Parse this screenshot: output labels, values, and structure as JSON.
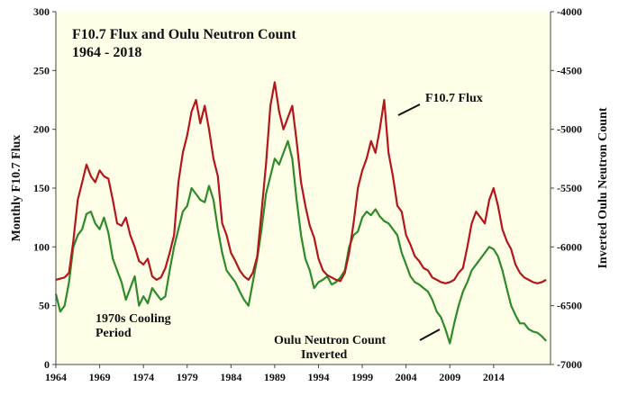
{
  "chart_data": {
    "type": "line",
    "title": "F10.7 Flux and Oulu Neutron Count",
    "subtitle": "1964 - 2018",
    "ylabel_left": "Monthly F10.7 Flux",
    "ylabel_right": "Inverted Oulu Neutron Count",
    "ylim_left": [
      0,
      300
    ],
    "ylim_right": [
      -7000,
      -4000
    ],
    "xlim": [
      1964,
      2020.5
    ],
    "x_ticks": [
      "1964",
      "1969",
      "1974",
      "1979",
      "1984",
      "1989",
      "1994",
      "1999",
      "2004",
      "2009",
      "2014"
    ],
    "y_left_ticks": [
      "0",
      "50",
      "100",
      "150",
      "200",
      "250",
      "300"
    ],
    "y_right_ticks": [
      "-4000",
      "-4500",
      "-5000",
      "-5500",
      "-6000",
      "-6500",
      "-7000"
    ],
    "grid": false,
    "colors": {
      "plot_background": "#ffffe8",
      "page_background": "#ffffff",
      "flux": "#b3161b",
      "neutron": "#2e8b28"
    },
    "series": [
      {
        "name": "F10.7 Flux",
        "axis": "left",
        "x": [
          1964.0,
          1965.0,
          1965.5,
          1966.0,
          1966.5,
          1967.0,
          1967.5,
          1968.0,
          1968.5,
          1969.0,
          1969.5,
          1970.0,
          1970.5,
          1971.0,
          1971.5,
          1972.0,
          1972.5,
          1973.0,
          1973.5,
          1974.0,
          1974.5,
          1975.0,
          1975.5,
          1976.0,
          1976.5,
          1977.0,
          1977.5,
          1978.0,
          1978.5,
          1979.0,
          1979.5,
          1980.0,
          1980.5,
          1981.0,
          1981.5,
          1982.0,
          1982.5,
          1983.0,
          1983.5,
          1984.0,
          1984.5,
          1985.0,
          1985.5,
          1986.0,
          1986.5,
          1987.0,
          1987.5,
          1988.0,
          1988.5,
          1989.0,
          1989.5,
          1990.0,
          1990.5,
          1991.0,
          1991.5,
          1992.0,
          1992.5,
          1993.0,
          1993.5,
          1994.0,
          1994.5,
          1995.0,
          1995.5,
          1996.0,
          1996.5,
          1997.0,
          1997.5,
          1998.0,
          1998.5,
          1999.0,
          1999.5,
          2000.0,
          2000.5,
          2001.0,
          2001.5,
          2002.0,
          2002.5,
          2003.0,
          2003.5,
          2004.0,
          2004.5,
          2005.0,
          2005.5,
          2006.0,
          2006.5,
          2007.0,
          2007.5,
          2008.0,
          2008.5,
          2009.0,
          2009.5,
          2010.0,
          2010.5,
          2011.0,
          2011.5,
          2012.0,
          2012.5,
          2013.0,
          2013.5,
          2014.0,
          2014.5,
          2015.0,
          2015.5,
          2016.0,
          2016.5,
          2017.0,
          2017.5,
          2018.0,
          2018.5,
          2019.0,
          2019.5,
          2020.0
        ],
        "values": [
          72,
          74,
          78,
          105,
          140,
          155,
          170,
          160,
          155,
          165,
          160,
          158,
          140,
          120,
          118,
          125,
          110,
          100,
          88,
          85,
          90,
          75,
          72,
          74,
          82,
          95,
          110,
          155,
          180,
          195,
          215,
          225,
          205,
          220,
          200,
          175,
          160,
          120,
          110,
          95,
          88,
          80,
          75,
          72,
          78,
          92,
          130,
          170,
          220,
          240,
          215,
          200,
          210,
          220,
          190,
          155,
          135,
          118,
          108,
          90,
          80,
          76,
          74,
          72,
          71,
          78,
          95,
          120,
          150,
          165,
          175,
          190,
          180,
          200,
          225,
          180,
          160,
          135,
          130,
          110,
          102,
          92,
          88,
          82,
          80,
          74,
          72,
          70,
          69,
          70,
          72,
          78,
          82,
          100,
          120,
          130,
          125,
          120,
          140,
          150,
          135,
          115,
          105,
          98,
          85,
          78,
          74,
          72,
          70,
          69,
          70,
          72
        ]
      },
      {
        "name": "Oulu Neutron Count Inverted",
        "axis": "right",
        "x": [
          1964.0,
          1964.5,
          1965.0,
          1965.5,
          1966.0,
          1966.5,
          1967.0,
          1967.5,
          1968.0,
          1968.5,
          1969.0,
          1969.5,
          1970.0,
          1970.5,
          1971.0,
          1971.5,
          1972.0,
          1972.5,
          1973.0,
          1973.5,
          1974.0,
          1974.5,
          1975.0,
          1975.5,
          1976.0,
          1976.5,
          1977.0,
          1977.5,
          1978.0,
          1978.5,
          1979.0,
          1979.5,
          1980.0,
          1980.5,
          1981.0,
          1981.5,
          1982.0,
          1982.5,
          1983.0,
          1983.5,
          1984.0,
          1984.5,
          1985.0,
          1985.5,
          1986.0,
          1986.5,
          1987.0,
          1987.5,
          1988.0,
          1988.5,
          1989.0,
          1989.5,
          1990.0,
          1990.5,
          1991.0,
          1991.5,
          1992.0,
          1992.5,
          1993.0,
          1993.5,
          1994.0,
          1994.5,
          1995.0,
          1995.5,
          1996.0,
          1996.5,
          1997.0,
          1997.5,
          1998.0,
          1998.5,
          1999.0,
          1999.5,
          2000.0,
          2000.5,
          2001.0,
          2001.5,
          2002.0,
          2002.5,
          2003.0,
          2003.5,
          2004.0,
          2004.5,
          2005.0,
          2005.5,
          2006.0,
          2006.5,
          2007.0,
          2007.5,
          2008.0,
          2008.5,
          2009.0,
          2009.5,
          2010.0,
          2010.5,
          2011.0,
          2011.5,
          2012.0,
          2012.5,
          2013.0,
          2013.5,
          2014.0,
          2014.5,
          2015.0,
          2015.5,
          2016.0,
          2016.5,
          2017.0,
          2017.5,
          2018.0,
          2018.5,
          2019.0,
          2019.5,
          2020.0
        ],
        "values": [
          -6400,
          -6550,
          -6500,
          -6300,
          -6000,
          -5900,
          -5850,
          -5720,
          -5700,
          -5800,
          -5850,
          -5750,
          -5880,
          -6100,
          -6200,
          -6300,
          -6450,
          -6350,
          -6250,
          -6500,
          -6420,
          -6480,
          -6350,
          -6400,
          -6450,
          -6420,
          -6200,
          -6000,
          -5850,
          -5700,
          -5650,
          -5500,
          -5550,
          -5600,
          -5620,
          -5480,
          -5600,
          -5850,
          -6050,
          -6200,
          -6250,
          -6300,
          -6380,
          -6450,
          -6500,
          -6300,
          -6100,
          -5850,
          -5550,
          -5400,
          -5250,
          -5300,
          -5200,
          -5100,
          -5250,
          -5600,
          -5900,
          -6100,
          -6200,
          -6350,
          -6300,
          -6280,
          -6250,
          -6320,
          -6300,
          -6260,
          -6200,
          -6000,
          -5900,
          -5870,
          -5750,
          -5700,
          -5730,
          -5680,
          -5740,
          -5780,
          -5800,
          -5850,
          -5900,
          -6050,
          -6150,
          -6250,
          -6300,
          -6320,
          -6350,
          -6380,
          -6450,
          -6550,
          -6600,
          -6700,
          -6820,
          -6650,
          -6500,
          -6380,
          -6300,
          -6200,
          -6150,
          -6100,
          -6050,
          -6000,
          -6020,
          -6080,
          -6200,
          -6350,
          -6500,
          -6580,
          -6650,
          -6650,
          -6700,
          -6720,
          -6730,
          -6760,
          -6800
        ]
      }
    ],
    "legend_labels": {
      "flux": "F10.7 Flux",
      "neutron_line1": "Oulu Neutron Count",
      "neutron_line2": "Inverted"
    },
    "annotations": [
      {
        "line1": "1970s Cooling",
        "line2": "Period"
      }
    ]
  }
}
